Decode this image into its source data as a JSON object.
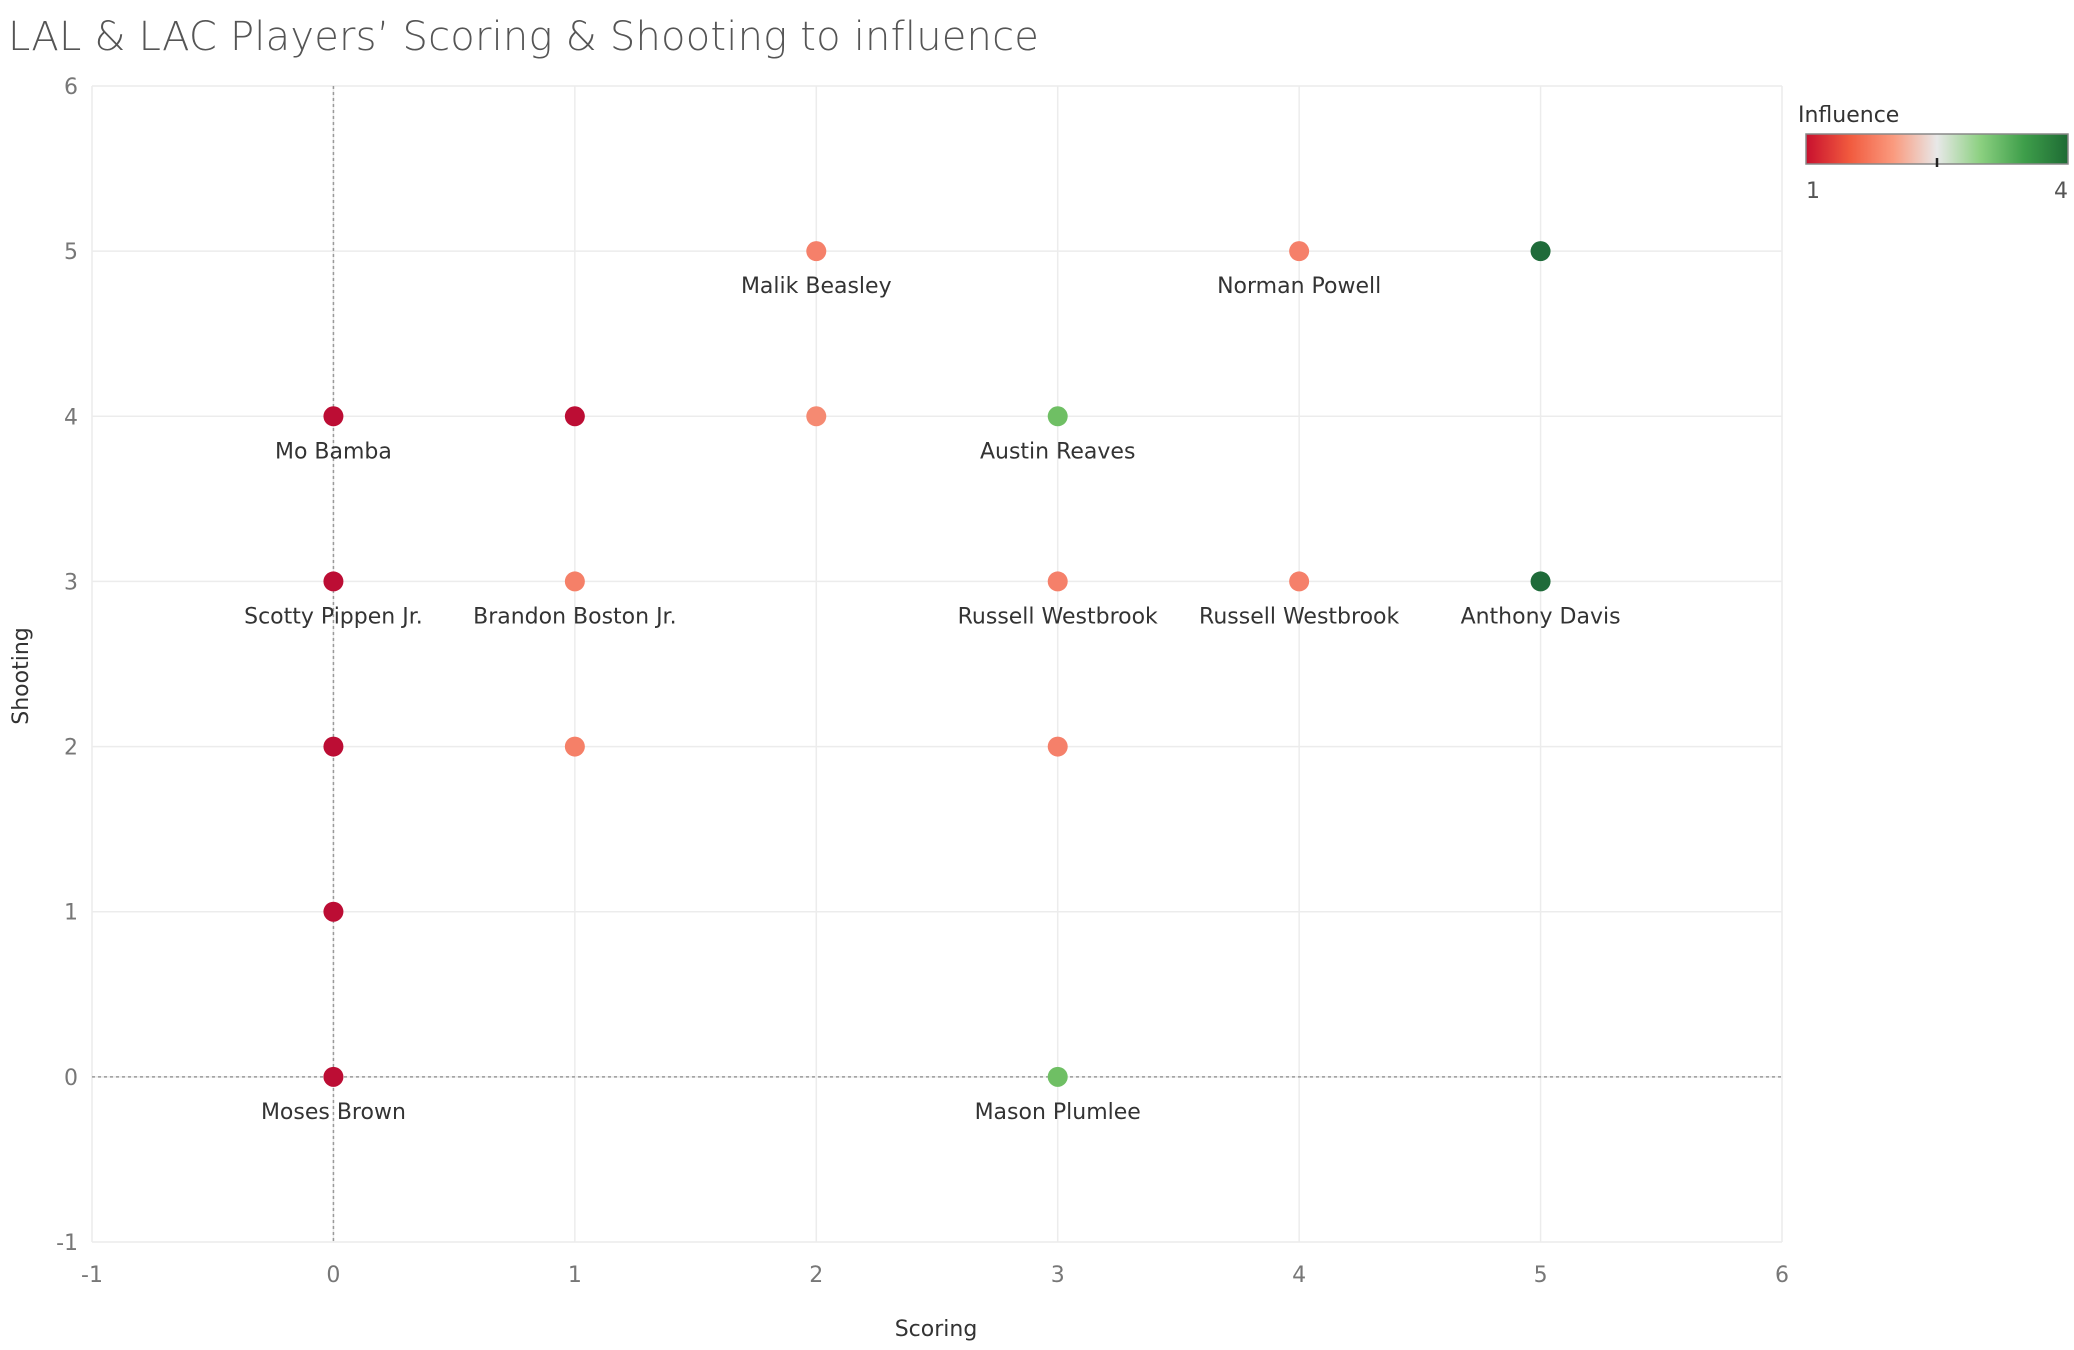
{
  "title": "LAL & LAC Players’ Scoring & Shooting to influence",
  "chart_data": {
    "type": "scatter",
    "xlabel": "Scoring",
    "ylabel": "Shooting",
    "xlim": [
      -1,
      6
    ],
    "ylim": [
      -1,
      6
    ],
    "xticks": [
      "-1",
      "0",
      "1",
      "2",
      "3",
      "4",
      "5",
      "6"
    ],
    "yticks": [
      "-1",
      "0",
      "1",
      "2",
      "3",
      "4",
      "5",
      "6"
    ],
    "grid": true,
    "reference_lines": {
      "x": 0,
      "y": 0
    },
    "color_legend": {
      "title": "Influence",
      "min_label": "1",
      "max_label": "4",
      "range": [
        1,
        4
      ],
      "midpoint_marker": 2.5,
      "colors": [
        "#c8102e",
        "#f15a3e",
        "#fa9a7e",
        "#e8e8e8",
        "#8bd080",
        "#3e9e4a",
        "#1e6b34"
      ],
      "placement": "top-right"
    },
    "points": [
      {
        "x": 0,
        "y": 4,
        "label": "Mo Bamba",
        "color": "#bc0d34"
      },
      {
        "x": 0,
        "y": 3,
        "label": "Scotty Pippen Jr.",
        "color": "#bc0d34"
      },
      {
        "x": 0,
        "y": 2,
        "label": "",
        "color": "#bc0d34"
      },
      {
        "x": 0,
        "y": 1,
        "label": "",
        "color": "#bc0d34"
      },
      {
        "x": 0,
        "y": 0,
        "label": "Moses Brown",
        "color": "#bc0d34"
      },
      {
        "x": 1,
        "y": 4,
        "label": "",
        "color": "#bc0d34"
      },
      {
        "x": 1,
        "y": 3,
        "label": "Brandon Boston Jr.",
        "color": "#f58068"
      },
      {
        "x": 1,
        "y": 2,
        "label": "",
        "color": "#f58068"
      },
      {
        "x": 2,
        "y": 5,
        "label": "Malik Beasley",
        "color": "#f5806a"
      },
      {
        "x": 2,
        "y": 4,
        "label": "",
        "color": "#f58a72"
      },
      {
        "x": 3,
        "y": 4,
        "label": "Austin Reaves",
        "color": "#6fbf64"
      },
      {
        "x": 3,
        "y": 3,
        "label": "Russell Westbrook",
        "color": "#f5806a"
      },
      {
        "x": 3,
        "y": 2,
        "label": "",
        "color": "#f5806a"
      },
      {
        "x": 3,
        "y": 0,
        "label": "Mason Plumlee",
        "color": "#6fbf64"
      },
      {
        "x": 4,
        "y": 5,
        "label": "Norman Powell",
        "color": "#f5806a"
      },
      {
        "x": 4,
        "y": 3,
        "label": "Russell Westbrook",
        "color": "#f5806a"
      },
      {
        "x": 5,
        "y": 5,
        "label": "",
        "color": "#1f6b3a"
      },
      {
        "x": 5,
        "y": 3,
        "label": "Anthony Davis",
        "color": "#1f6b3a"
      }
    ]
  }
}
